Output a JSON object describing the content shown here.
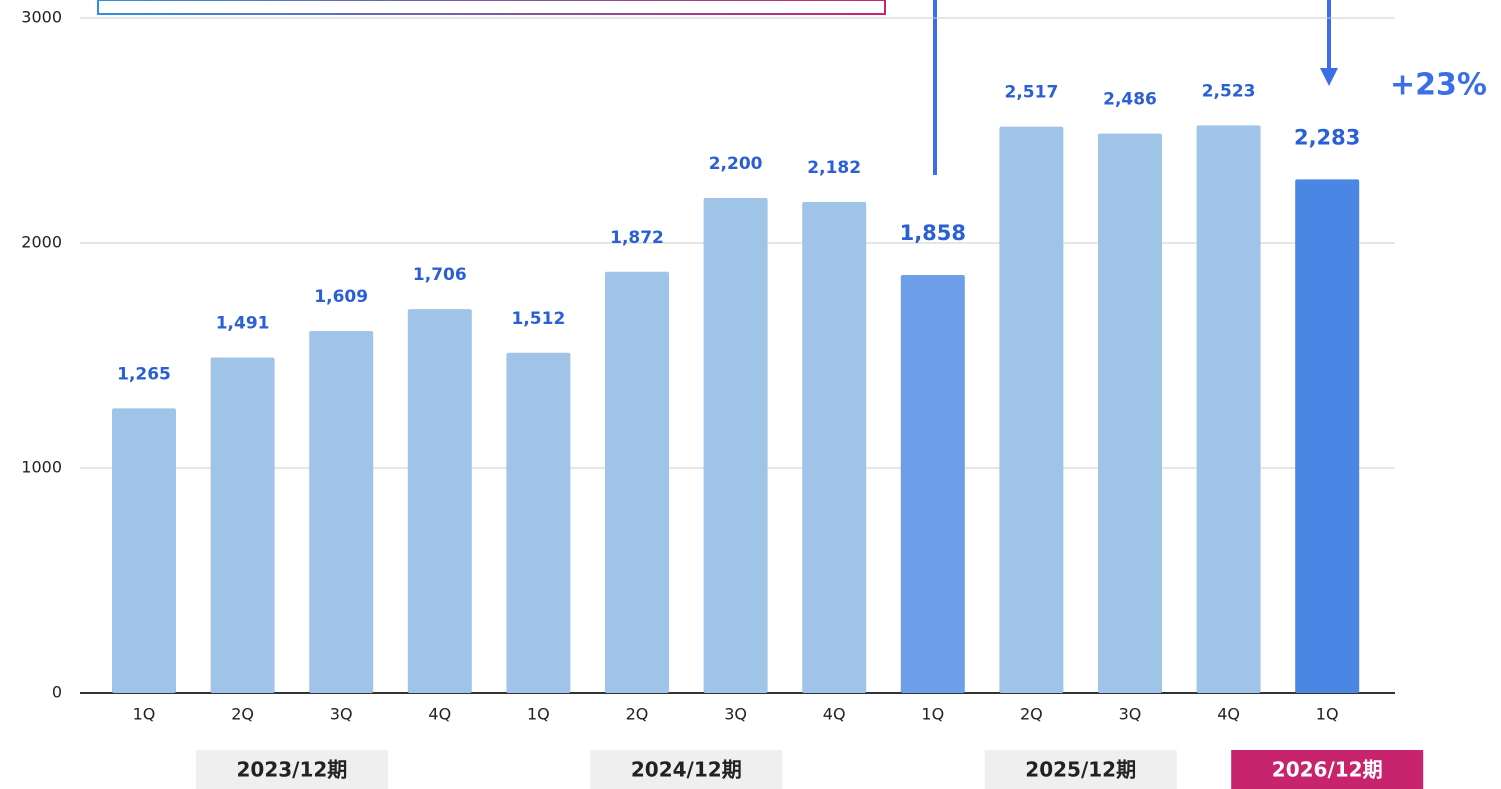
{
  "chart_data": {
    "type": "bar",
    "annotation": "+23%",
    "ylim": [
      0,
      3000
    ],
    "yticks": [
      0,
      1000,
      2000,
      3000
    ],
    "grid": true,
    "periods": [
      {
        "label": "2023/12期",
        "box_color": "#efefef",
        "label_color": "#222222",
        "categories": [
          "1Q",
          "2Q",
          "3Q",
          "4Q"
        ],
        "values": [
          1265,
          1491,
          1609,
          1706
        ],
        "value_labels": [
          "1,265",
          "1,491",
          "1,609",
          "1,706"
        ],
        "colors": [
          "#a0c4e8",
          "#a0c4e8",
          "#a0c4e8",
          "#a0c4e8"
        ]
      },
      {
        "label": "2024/12期",
        "box_color": "#efefef",
        "label_color": "#222222",
        "categories": [
          "1Q",
          "2Q",
          "3Q",
          "4Q"
        ],
        "values": [
          1512,
          1872,
          2200,
          2182
        ],
        "value_labels": [
          "1,512",
          "1,872",
          "2,200",
          "2,182"
        ],
        "colors": [
          "#a0c4e8",
          "#a0c4e8",
          "#a0c4e8",
          "#a0c4e8"
        ]
      },
      {
        "label": "2025/12期",
        "box_color": "#efefef",
        "label_color": "#222222",
        "categories": [
          "1Q",
          "2Q",
          "3Q",
          "4Q"
        ],
        "values": [
          1858,
          2517,
          2486,
          2523
        ],
        "value_labels": [
          "1,858",
          "2,517",
          "2,486",
          "2,523"
        ],
        "colors": [
          "#6d9eea",
          "#a0c4e8",
          "#a0c4e8",
          "#a0c4e8"
        ]
      },
      {
        "label": "2026/12期",
        "box_color": "#c8246e",
        "label_color": "#ffffff",
        "categories": [
          "1Q"
        ],
        "values": [
          2283
        ],
        "value_labels": [
          "2,283"
        ],
        "colors": [
          "#4a86e4"
        ]
      }
    ]
  }
}
